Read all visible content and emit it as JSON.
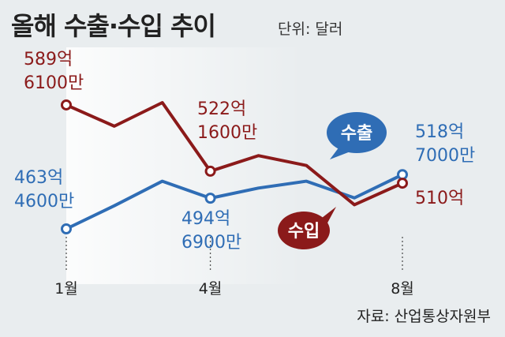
{
  "title": "올해 수출·수입 추이",
  "unit_label": "단위: 달러",
  "source": "자료: 산업통상자원부",
  "colors": {
    "export": "#2f6db5",
    "import": "#8b1a1a",
    "grid": "#555555",
    "background": "#e9edef"
  },
  "chart_data": {
    "type": "line",
    "x": [
      1,
      2,
      3,
      4,
      5,
      6,
      7,
      8
    ],
    "x_tick_labels": [
      {
        "x": 1,
        "label": "1월"
      },
      {
        "x": 4,
        "label": "4월"
      },
      {
        "x": 8,
        "label": "8월"
      }
    ],
    "series": [
      {
        "name": "수출",
        "color": "#2f6db5",
        "values": [
          463.46,
          487,
          512,
          494.69,
          505,
          512,
          495,
          518.7
        ],
        "labels": [
          {
            "x": 1,
            "line1": "463억",
            "line2": "4600만"
          },
          {
            "x": 4,
            "line1": "494억",
            "line2": "6900만"
          },
          {
            "x": 8,
            "line1": "518억",
            "line2": "7000만"
          }
        ]
      },
      {
        "name": "수입",
        "color": "#8b1a1a",
        "values": [
          589.61,
          568,
          592,
          522.16,
          538,
          528,
          488,
          510
        ],
        "labels": [
          {
            "x": 1,
            "line1": "589억",
            "line2": "6100만"
          },
          {
            "x": 4,
            "line1": "522억",
            "line2": "1600만"
          },
          {
            "x": 8,
            "line1": "510억",
            "line2": ""
          }
        ]
      }
    ]
  }
}
